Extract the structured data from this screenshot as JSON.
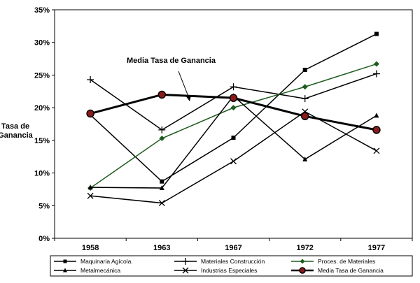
{
  "chart_data": {
    "type": "line",
    "x": [
      "1958",
      "1963",
      "1967",
      "1972",
      "1977"
    ],
    "ylabel": "Tasa de Ganancia",
    "ylim": [
      0,
      35
    ],
    "yticks": [
      "0%",
      "5%",
      "10%",
      "15%",
      "20%",
      "25%",
      "30%",
      "35%"
    ],
    "grid": false,
    "legend_position": "bottom",
    "annotation": "Media Tasa de Ganancia",
    "series": [
      {
        "name": "Maquinaria Agícola.",
        "marker": "square",
        "color": "#000000",
        "values": [
          18.9,
          8.7,
          15.4,
          25.8,
          31.3
        ]
      },
      {
        "name": "Materiales Construcción",
        "marker": "plus",
        "color": "#000000",
        "values": [
          24.3,
          16.6,
          23.2,
          21.4,
          25.2
        ]
      },
      {
        "name": "Proces. de Materiales",
        "marker": "diamond",
        "color": "#1f5c1f",
        "values": [
          7.7,
          15.3,
          20.0,
          23.2,
          26.7
        ]
      },
      {
        "name": "Metalmecánica",
        "marker": "triangle",
        "color": "#000000",
        "values": [
          7.8,
          7.7,
          21.8,
          12.1,
          18.8
        ]
      },
      {
        "name": "Industrias Especiales",
        "marker": "x",
        "color": "#000000",
        "values": [
          6.5,
          5.4,
          11.8,
          19.4,
          13.4
        ]
      },
      {
        "name": "Media Tasa de Ganancia",
        "marker": "circle",
        "color": "#000000",
        "markerFill": "#8b1a1a",
        "values": [
          19.1,
          22.0,
          21.5,
          18.7,
          16.6
        ]
      }
    ]
  }
}
